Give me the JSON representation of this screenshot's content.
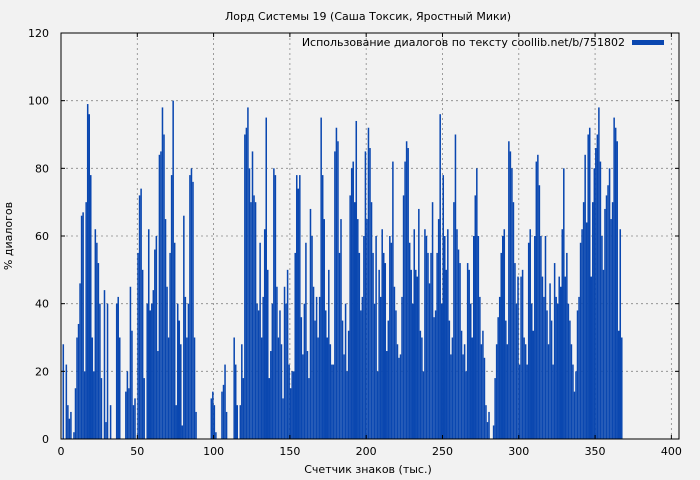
{
  "chart_data": {
    "type": "bar",
    "title": "Лорд Системы 19 (Саша Токсик, Яростный Мики)",
    "xlabel": "Счетчик знаков (тыс.)",
    "ylabel": "% диалогов",
    "xlim": [
      0,
      405
    ],
    "ylim": [
      0,
      120
    ],
    "x_ticks": [
      0,
      50,
      100,
      150,
      200,
      250,
      300,
      350,
      400
    ],
    "y_ticks": [
      0,
      20,
      40,
      60,
      80,
      100,
      120
    ],
    "grid": true,
    "legend_position": "top-right",
    "series": [
      {
        "name": "Использование диалогов по тексту coollib.net/b/751802",
        "color": "#0a47b0",
        "bin_width_thousand_chars": 1,
        "x_start": 1,
        "values": [
          28,
          0,
          22,
          10,
          6,
          8,
          0,
          2,
          15,
          30,
          34,
          46,
          66,
          67,
          20,
          70,
          99,
          96,
          78,
          30,
          20,
          62,
          58,
          52,
          40,
          18,
          0,
          44,
          5,
          40,
          0,
          10,
          0,
          0,
          0,
          40,
          42,
          30,
          0,
          0,
          0,
          14,
          20,
          15,
          45,
          32,
          10,
          12,
          0,
          55,
          72,
          74,
          50,
          18,
          0,
          40,
          62,
          38,
          40,
          44,
          56,
          60,
          26,
          84,
          85,
          98,
          90,
          65,
          45,
          30,
          55,
          78,
          100,
          58,
          10,
          40,
          35,
          28,
          4,
          66,
          42,
          30,
          40,
          78,
          80,
          76,
          30,
          8,
          0,
          0,
          0,
          0,
          0,
          0,
          0,
          0,
          0,
          12,
          14,
          10,
          2,
          0,
          0,
          0,
          14,
          16,
          22,
          8,
          0,
          0,
          0,
          0,
          30,
          22,
          10,
          0,
          10,
          28,
          18,
          90,
          92,
          98,
          80,
          70,
          85,
          72,
          70,
          40,
          38,
          58,
          30,
          42,
          62,
          95,
          50,
          18,
          26,
          40,
          80,
          78,
          45,
          30,
          38,
          28,
          12,
          45,
          40,
          50,
          22,
          15,
          20,
          20,
          55,
          78,
          74,
          78,
          36,
          25,
          40,
          58,
          26,
          18,
          68,
          60,
          45,
          35,
          42,
          30,
          42,
          95,
          78,
          65,
          38,
          30,
          50,
          28,
          22,
          22,
          85,
          92,
          88,
          55,
          65,
          35,
          25,
          40,
          20,
          32,
          72,
          80,
          82,
          70,
          94,
          65,
          55,
          38,
          42,
          60,
          85,
          65,
          92,
          86,
          70,
          55,
          40,
          60,
          20,
          50,
          42,
          62,
          55,
          52,
          26,
          35,
          60,
          58,
          82,
          45,
          38,
          28,
          24,
          25,
          42,
          72,
          82,
          88,
          86,
          58,
          50,
          40,
          62,
          50,
          48,
          68,
          32,
          30,
          20,
          62,
          60,
          55,
          46,
          55,
          70,
          36,
          38,
          55,
          65,
          96,
          40,
          78,
          60,
          50,
          62,
          35,
          25,
          30,
          70,
          90,
          62,
          56,
          52,
          32,
          25,
          28,
          20,
          52,
          50,
          40,
          30,
          60,
          72,
          80,
          60,
          42,
          28,
          32,
          24,
          10,
          5,
          8,
          0,
          0,
          4,
          18,
          28,
          36,
          42,
          55,
          60,
          62,
          35,
          28,
          88,
          85,
          80,
          70,
          52,
          40,
          48,
          22,
          48,
          50,
          30,
          28,
          22,
          58,
          62,
          40,
          32,
          60,
          82,
          84,
          75,
          60,
          48,
          42,
          60,
          38,
          28,
          46,
          35,
          22,
          52,
          42,
          40,
          48,
          45,
          62,
          80,
          48,
          55,
          40,
          35,
          28,
          22,
          14,
          20,
          38,
          42,
          58,
          62,
          70,
          84,
          64,
          90,
          92,
          48,
          70,
          80,
          86,
          90,
          98,
          82,
          60,
          50,
          68,
          72,
          75,
          80,
          65,
          70,
          95,
          92,
          88,
          32,
          62,
          30
        ]
      }
    ]
  }
}
